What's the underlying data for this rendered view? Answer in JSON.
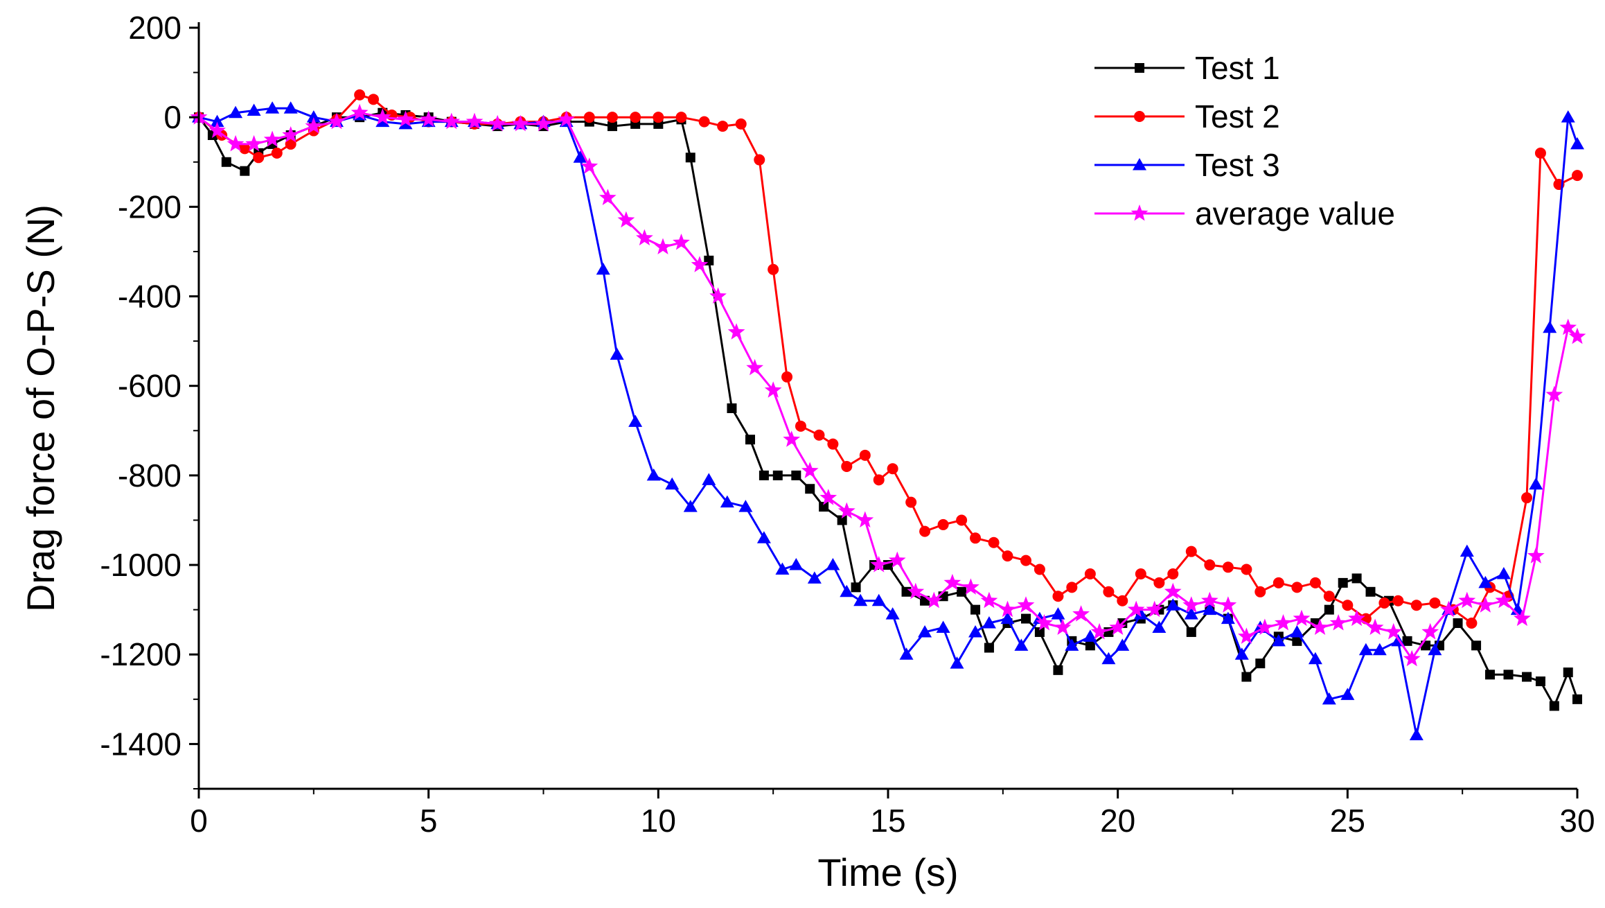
{
  "chart_data": {
    "type": "line",
    "title": "",
    "xlabel": "Time (s)",
    "ylabel": "Drag force of O-P-S (N)",
    "xlim": [
      0,
      30
    ],
    "ylim": [
      -1500,
      200
    ],
    "xticks": [
      0,
      5,
      10,
      15,
      20,
      25,
      30
    ],
    "yticks": [
      200,
      0,
      -200,
      -400,
      -600,
      -800,
      -1000,
      -1200,
      -1400
    ],
    "xtick_labels": [
      "0",
      "5",
      "10",
      "15",
      "20",
      "25",
      "30"
    ],
    "ytick_labels": [
      "200",
      "0",
      "-200",
      "-400",
      "-600",
      "-800",
      "-1000",
      "-1200",
      "-1400"
    ],
    "legend_position": "top-right",
    "series": [
      {
        "name": "Test 1",
        "color": "#000000",
        "marker": "square",
        "points": [
          [
            0,
            0
          ],
          [
            0.3,
            -40
          ],
          [
            0.6,
            -100
          ],
          [
            1.0,
            -120
          ],
          [
            1.3,
            -80
          ],
          [
            1.6,
            -60
          ],
          [
            2.0,
            -40
          ],
          [
            2.5,
            -20
          ],
          [
            3.0,
            0
          ],
          [
            3.5,
            0
          ],
          [
            4.0,
            10
          ],
          [
            4.5,
            5
          ],
          [
            5.0,
            0
          ],
          [
            5.5,
            -10
          ],
          [
            6.0,
            -15
          ],
          [
            6.5,
            -20
          ],
          [
            7.0,
            -15
          ],
          [
            7.5,
            -20
          ],
          [
            8.0,
            -10
          ],
          [
            8.5,
            -10
          ],
          [
            9.0,
            -20
          ],
          [
            9.5,
            -15
          ],
          [
            10.0,
            -15
          ],
          [
            10.5,
            -5
          ],
          [
            10.7,
            -90
          ],
          [
            11.1,
            -320
          ],
          [
            11.6,
            -650
          ],
          [
            12.0,
            -720
          ],
          [
            12.3,
            -800
          ],
          [
            12.6,
            -800
          ],
          [
            13.0,
            -800
          ],
          [
            13.3,
            -830
          ],
          [
            13.6,
            -870
          ],
          [
            14.0,
            -900
          ],
          [
            14.3,
            -1050
          ],
          [
            14.7,
            -1000
          ],
          [
            15.0,
            -1000
          ],
          [
            15.4,
            -1060
          ],
          [
            15.8,
            -1080
          ],
          [
            16.2,
            -1070
          ],
          [
            16.6,
            -1060
          ],
          [
            16.9,
            -1100
          ],
          [
            17.2,
            -1185
          ],
          [
            17.6,
            -1130
          ],
          [
            18.0,
            -1120
          ],
          [
            18.3,
            -1150
          ],
          [
            18.7,
            -1235
          ],
          [
            19.0,
            -1170
          ],
          [
            19.4,
            -1180
          ],
          [
            19.8,
            -1150
          ],
          [
            20.1,
            -1130
          ],
          [
            20.5,
            -1120
          ],
          [
            20.9,
            -1100
          ],
          [
            21.2,
            -1090
          ],
          [
            21.6,
            -1150
          ],
          [
            22.0,
            -1100
          ],
          [
            22.4,
            -1120
          ],
          [
            22.8,
            -1250
          ],
          [
            23.1,
            -1220
          ],
          [
            23.5,
            -1160
          ],
          [
            23.9,
            -1170
          ],
          [
            24.3,
            -1130
          ],
          [
            24.6,
            -1100
          ],
          [
            24.9,
            -1040
          ],
          [
            25.2,
            -1030
          ],
          [
            25.5,
            -1060
          ],
          [
            25.9,
            -1080
          ],
          [
            26.3,
            -1170
          ],
          [
            26.7,
            -1180
          ],
          [
            27.0,
            -1180
          ],
          [
            27.4,
            -1130
          ],
          [
            27.8,
            -1180
          ],
          [
            28.1,
            -1245
          ],
          [
            28.5,
            -1245
          ],
          [
            28.9,
            -1250
          ],
          [
            29.2,
            -1260
          ],
          [
            29.5,
            -1315
          ],
          [
            29.8,
            -1240
          ],
          [
            30.0,
            -1300
          ]
        ]
      },
      {
        "name": "Test 2",
        "color": "#ff0000",
        "marker": "circle",
        "points": [
          [
            0,
            0
          ],
          [
            0.5,
            -40
          ],
          [
            1.0,
            -70
          ],
          [
            1.3,
            -90
          ],
          [
            1.7,
            -80
          ],
          [
            2.0,
            -60
          ],
          [
            2.5,
            -30
          ],
          [
            3.0,
            -5
          ],
          [
            3.5,
            50
          ],
          [
            3.8,
            40
          ],
          [
            4.2,
            5
          ],
          [
            4.6,
            0
          ],
          [
            5.0,
            -10
          ],
          [
            5.5,
            -10
          ],
          [
            6.0,
            -15
          ],
          [
            6.5,
            -15
          ],
          [
            7.0,
            -10
          ],
          [
            7.5,
            -10
          ],
          [
            8.0,
            0
          ],
          [
            8.5,
            0
          ],
          [
            9.0,
            0
          ],
          [
            9.5,
            0
          ],
          [
            10.0,
            0
          ],
          [
            10.5,
            0
          ],
          [
            11.0,
            -10
          ],
          [
            11.4,
            -20
          ],
          [
            11.8,
            -15
          ],
          [
            12.2,
            -95
          ],
          [
            12.5,
            -340
          ],
          [
            12.8,
            -580
          ],
          [
            13.1,
            -690
          ],
          [
            13.5,
            -710
          ],
          [
            13.8,
            -730
          ],
          [
            14.1,
            -780
          ],
          [
            14.5,
            -755
          ],
          [
            14.8,
            -810
          ],
          [
            15.1,
            -785
          ],
          [
            15.5,
            -860
          ],
          [
            15.8,
            -925
          ],
          [
            16.2,
            -910
          ],
          [
            16.6,
            -900
          ],
          [
            16.9,
            -940
          ],
          [
            17.3,
            -950
          ],
          [
            17.6,
            -980
          ],
          [
            18.0,
            -990
          ],
          [
            18.3,
            -1010
          ],
          [
            18.7,
            -1070
          ],
          [
            19.0,
            -1050
          ],
          [
            19.4,
            -1020
          ],
          [
            19.8,
            -1060
          ],
          [
            20.1,
            -1080
          ],
          [
            20.5,
            -1020
          ],
          [
            20.9,
            -1040
          ],
          [
            21.2,
            -1020
          ],
          [
            21.6,
            -970
          ],
          [
            22.0,
            -1000
          ],
          [
            22.4,
            -1005
          ],
          [
            22.8,
            -1010
          ],
          [
            23.1,
            -1060
          ],
          [
            23.5,
            -1040
          ],
          [
            23.9,
            -1050
          ],
          [
            24.3,
            -1040
          ],
          [
            24.6,
            -1070
          ],
          [
            25.0,
            -1090
          ],
          [
            25.4,
            -1120
          ],
          [
            25.8,
            -1085
          ],
          [
            26.1,
            -1080
          ],
          [
            26.5,
            -1090
          ],
          [
            26.9,
            -1085
          ],
          [
            27.3,
            -1100
          ],
          [
            27.7,
            -1130
          ],
          [
            28.1,
            -1050
          ],
          [
            28.5,
            -1070
          ],
          [
            28.9,
            -850
          ],
          [
            29.2,
            -80
          ],
          [
            29.6,
            -150
          ],
          [
            30.0,
            -130
          ]
        ]
      },
      {
        "name": "Test 3",
        "color": "#0000ff",
        "marker": "triangle",
        "points": [
          [
            0,
            0
          ],
          [
            0.4,
            -10
          ],
          [
            0.8,
            10
          ],
          [
            1.2,
            15
          ],
          [
            1.6,
            20
          ],
          [
            2.0,
            20
          ],
          [
            2.5,
            0
          ],
          [
            3.0,
            -10
          ],
          [
            3.5,
            5
          ],
          [
            4.0,
            -10
          ],
          [
            4.5,
            -15
          ],
          [
            5.0,
            -10
          ],
          [
            5.5,
            -10
          ],
          [
            6.0,
            -10
          ],
          [
            6.5,
            -15
          ],
          [
            7.0,
            -15
          ],
          [
            7.5,
            -10
          ],
          [
            8.0,
            -10
          ],
          [
            8.3,
            -90
          ],
          [
            8.8,
            -340
          ],
          [
            9.1,
            -530
          ],
          [
            9.5,
            -680
          ],
          [
            9.9,
            -800
          ],
          [
            10.3,
            -820
          ],
          [
            10.7,
            -870
          ],
          [
            11.1,
            -810
          ],
          [
            11.5,
            -860
          ],
          [
            11.9,
            -870
          ],
          [
            12.3,
            -940
          ],
          [
            12.7,
            -1010
          ],
          [
            13.0,
            -1000
          ],
          [
            13.4,
            -1030
          ],
          [
            13.8,
            -1000
          ],
          [
            14.1,
            -1060
          ],
          [
            14.4,
            -1080
          ],
          [
            14.8,
            -1080
          ],
          [
            15.1,
            -1110
          ],
          [
            15.4,
            -1200
          ],
          [
            15.8,
            -1150
          ],
          [
            16.2,
            -1140
          ],
          [
            16.5,
            -1220
          ],
          [
            16.9,
            -1150
          ],
          [
            17.2,
            -1130
          ],
          [
            17.6,
            -1120
          ],
          [
            17.9,
            -1180
          ],
          [
            18.3,
            -1120
          ],
          [
            18.7,
            -1110
          ],
          [
            19.0,
            -1180
          ],
          [
            19.4,
            -1160
          ],
          [
            19.8,
            -1210
          ],
          [
            20.1,
            -1180
          ],
          [
            20.5,
            -1110
          ],
          [
            20.9,
            -1140
          ],
          [
            21.2,
            -1090
          ],
          [
            21.6,
            -1110
          ],
          [
            22.0,
            -1100
          ],
          [
            22.4,
            -1120
          ],
          [
            22.7,
            -1200
          ],
          [
            23.1,
            -1140
          ],
          [
            23.5,
            -1170
          ],
          [
            23.9,
            -1150
          ],
          [
            24.3,
            -1210
          ],
          [
            24.6,
            -1300
          ],
          [
            25.0,
            -1290
          ],
          [
            25.4,
            -1190
          ],
          [
            25.7,
            -1190
          ],
          [
            26.1,
            -1170
          ],
          [
            26.5,
            -1380
          ],
          [
            26.9,
            -1190
          ],
          [
            27.2,
            -1100
          ],
          [
            27.6,
            -970
          ],
          [
            28.0,
            -1040
          ],
          [
            28.4,
            -1020
          ],
          [
            28.7,
            -1100
          ],
          [
            29.1,
            -820
          ],
          [
            29.4,
            -470
          ],
          [
            29.8,
            0
          ],
          [
            30.0,
            -60
          ]
        ]
      },
      {
        "name": "average value",
        "color": "#ff00ff",
        "marker": "star",
        "points": [
          [
            0,
            0
          ],
          [
            0.4,
            -30
          ],
          [
            0.8,
            -60
          ],
          [
            1.2,
            -60
          ],
          [
            1.6,
            -50
          ],
          [
            2.0,
            -40
          ],
          [
            2.5,
            -20
          ],
          [
            3.0,
            -10
          ],
          [
            3.5,
            10
          ],
          [
            4.0,
            0
          ],
          [
            4.5,
            -5
          ],
          [
            5.0,
            -5
          ],
          [
            5.5,
            -10
          ],
          [
            6.0,
            -10
          ],
          [
            6.5,
            -15
          ],
          [
            7.0,
            -15
          ],
          [
            7.5,
            -15
          ],
          [
            8.0,
            -5
          ],
          [
            8.5,
            -110
          ],
          [
            8.9,
            -180
          ],
          [
            9.3,
            -230
          ],
          [
            9.7,
            -270
          ],
          [
            10.1,
            -290
          ],
          [
            10.5,
            -280
          ],
          [
            10.9,
            -330
          ],
          [
            11.3,
            -400
          ],
          [
            11.7,
            -480
          ],
          [
            12.1,
            -560
          ],
          [
            12.5,
            -610
          ],
          [
            12.9,
            -720
          ],
          [
            13.3,
            -790
          ],
          [
            13.7,
            -850
          ],
          [
            14.1,
            -880
          ],
          [
            14.5,
            -900
          ],
          [
            14.8,
            -1000
          ],
          [
            15.2,
            -990
          ],
          [
            15.6,
            -1060
          ],
          [
            16.0,
            -1080
          ],
          [
            16.4,
            -1040
          ],
          [
            16.8,
            -1050
          ],
          [
            17.2,
            -1080
          ],
          [
            17.6,
            -1100
          ],
          [
            18.0,
            -1090
          ],
          [
            18.4,
            -1130
          ],
          [
            18.8,
            -1140
          ],
          [
            19.2,
            -1110
          ],
          [
            19.6,
            -1150
          ],
          [
            20.0,
            -1140
          ],
          [
            20.4,
            -1100
          ],
          [
            20.8,
            -1100
          ],
          [
            21.2,
            -1060
          ],
          [
            21.6,
            -1090
          ],
          [
            22.0,
            -1080
          ],
          [
            22.4,
            -1090
          ],
          [
            22.8,
            -1160
          ],
          [
            23.2,
            -1140
          ],
          [
            23.6,
            -1130
          ],
          [
            24.0,
            -1120
          ],
          [
            24.4,
            -1140
          ],
          [
            24.8,
            -1130
          ],
          [
            25.2,
            -1120
          ],
          [
            25.6,
            -1140
          ],
          [
            26.0,
            -1150
          ],
          [
            26.4,
            -1210
          ],
          [
            26.8,
            -1150
          ],
          [
            27.2,
            -1100
          ],
          [
            27.6,
            -1080
          ],
          [
            28.0,
            -1090
          ],
          [
            28.4,
            -1080
          ],
          [
            28.8,
            -1120
          ],
          [
            29.1,
            -980
          ],
          [
            29.5,
            -620
          ],
          [
            29.8,
            -470
          ],
          [
            30.0,
            -490
          ]
        ]
      }
    ]
  }
}
